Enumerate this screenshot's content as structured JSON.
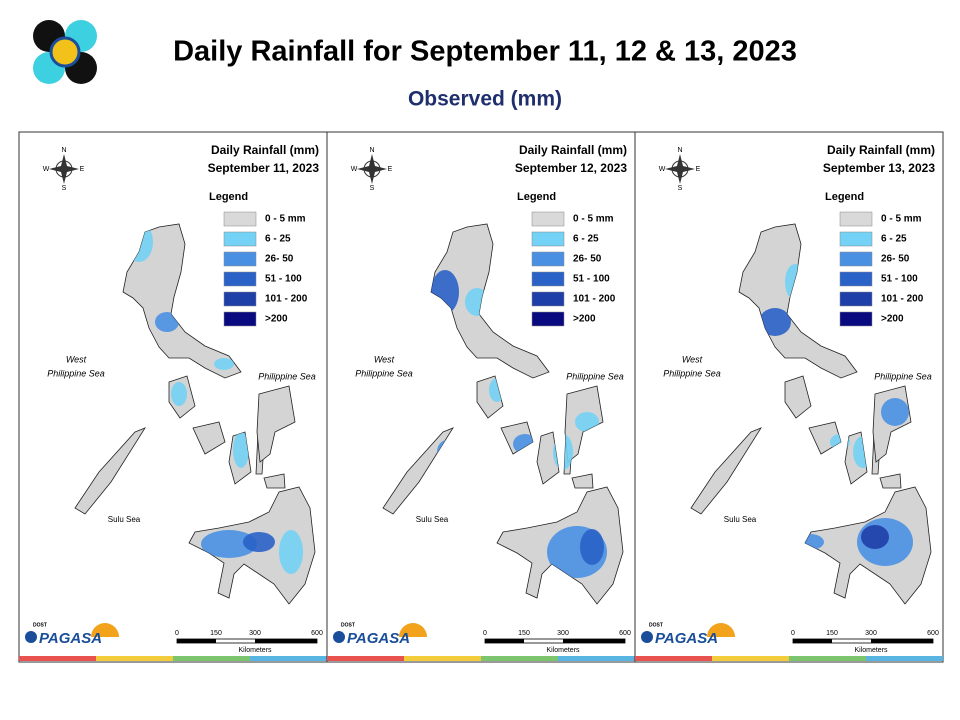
{
  "header": {
    "title": "Daily Rainfall for September 11, 12 & 13, 2023",
    "subtitle": "Observed (mm)"
  },
  "panels": [
    {
      "title": "Daily Rainfall (mm)",
      "date": "September 11, 2023"
    },
    {
      "title": "Daily Rainfall (mm)",
      "date": "September 12, 2023"
    },
    {
      "title": "Daily Rainfall (mm)",
      "date": "September 13, 2023"
    }
  ],
  "legend": {
    "title": "Legend",
    "items": [
      {
        "label": "0 - 5 mm",
        "color": "#d9d9d9"
      },
      {
        "label": "6 - 25",
        "color": "#73d2f5"
      },
      {
        "label": "26- 50",
        "color": "#4a90e2"
      },
      {
        "label": "51 - 100",
        "color": "#2a62c8"
      },
      {
        "label": "101 - 200",
        "color": "#1f3fa8"
      },
      {
        "label": ">200",
        "color": "#0a0a80"
      }
    ]
  },
  "map_labels": {
    "west_1": "West",
    "west_2": "Philippine Sea",
    "east": "Philippine Sea",
    "south": "Sulu Sea"
  },
  "compass": {
    "n": "N",
    "e": "E",
    "s": "S",
    "w": "W"
  },
  "scale": {
    "ticks": [
      "0",
      "150",
      "300",
      "600"
    ],
    "unit": "Kilometers"
  },
  "logo": {
    "agency": "DOST",
    "name": "PAGASA"
  }
}
